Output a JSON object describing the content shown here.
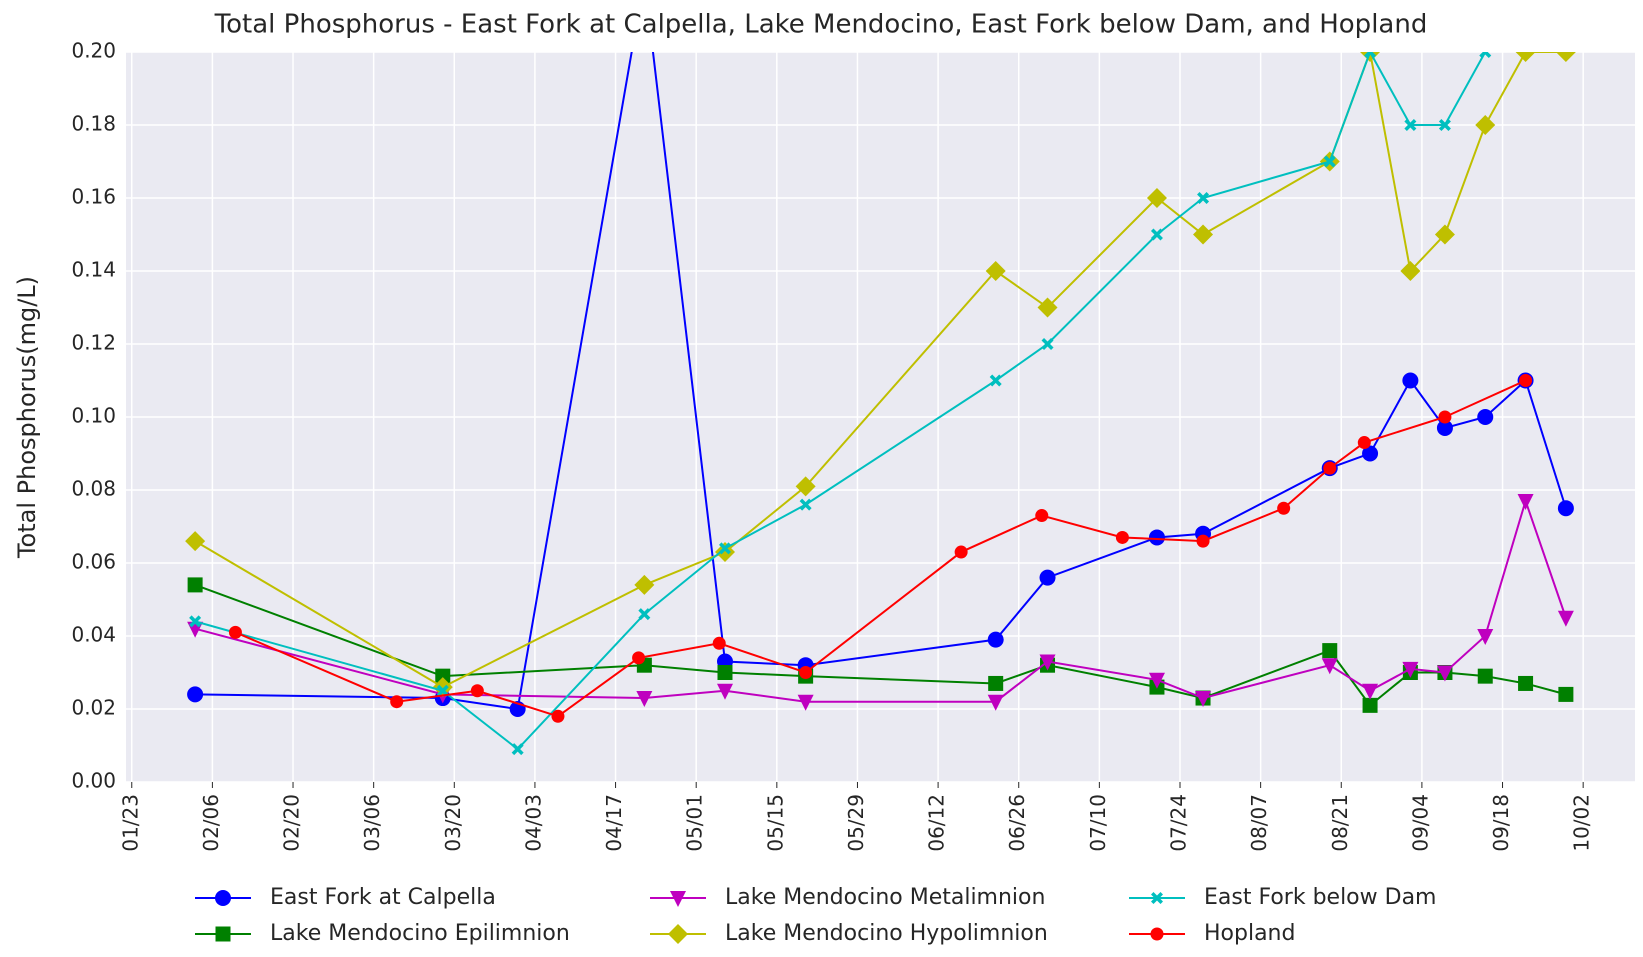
{
  "chart_data": {
    "type": "line",
    "title": "Total Phosphorus - East Fork at Calpella, Lake Mendocino, East Fork below Dam, and Hopland",
    "y_label": "Total Phosphorus(mg/L)",
    "xlim": [
      "01/22",
      "10/11"
    ],
    "xticks": [
      "01/23",
      "02/06",
      "02/20",
      "03/06",
      "03/20",
      "04/03",
      "04/17",
      "05/01",
      "05/15",
      "05/29",
      "06/12",
      "06/26",
      "07/10",
      "07/24",
      "08/07",
      "08/21",
      "09/04",
      "09/18",
      "10/02"
    ],
    "ylim": [
      0,
      0.2
    ],
    "yticks": [
      {
        "value": 0,
        "label": "0.00"
      },
      {
        "value": 0.02,
        "label": "0.02"
      },
      {
        "value": 0.04,
        "label": "0.04"
      },
      {
        "value": 0.06,
        "label": "0.06"
      },
      {
        "value": 0.08,
        "label": "0.08"
      },
      {
        "value": 0.1,
        "label": "0.10"
      },
      {
        "value": 0.12,
        "label": "0.12"
      },
      {
        "value": 0.14,
        "label": "0.14"
      },
      {
        "value": 0.16,
        "label": "0.16"
      },
      {
        "value": 0.18,
        "label": "0.18"
      },
      {
        "value": 0.2,
        "label": "0.20"
      }
    ],
    "grid": true,
    "legend": "bottom",
    "series": [
      {
        "name": "East Fork at Calpella",
        "color": "#0000ff",
        "marker": "circle",
        "x": [
          "02/03",
          "03/18",
          "03/31",
          "04/22",
          "05/06",
          "05/20",
          "06/22",
          "07/01",
          "07/20",
          "07/28",
          "08/19",
          "08/26",
          "09/02",
          "09/08",
          "09/15",
          "09/22",
          "09/29"
        ],
        "values": [
          0.024,
          0.023,
          0.02,
          0.22,
          0.033,
          0.032,
          0.039,
          0.056,
          0.067,
          0.068,
          0.086,
          0.09,
          0.11,
          0.097,
          0.1,
          0.11,
          0.075
        ]
      },
      {
        "name": "Lake Mendocino Epilimnion",
        "color": "#008000",
        "marker": "square",
        "x": [
          "02/03",
          "03/18",
          "04/22",
          "05/06",
          "05/20",
          "06/22",
          "07/01",
          "07/20",
          "07/28",
          "08/19",
          "08/26",
          "09/02",
          "09/08",
          "09/15",
          "09/22",
          "09/29"
        ],
        "values": [
          0.054,
          0.029,
          0.032,
          0.03,
          0.029,
          0.027,
          0.032,
          0.026,
          0.023,
          0.036,
          0.021,
          0.03,
          0.03,
          0.029,
          0.027,
          0.024
        ]
      },
      {
        "name": "Lake Mendocino Metalimnion",
        "color": "#bf00bf",
        "marker": "triangle-down",
        "x": [
          "02/03",
          "03/18",
          "04/22",
          "05/06",
          "05/20",
          "06/22",
          "07/01",
          "07/20",
          "07/28",
          "08/19",
          "08/26",
          "09/02",
          "09/08",
          "09/15",
          "09/22",
          "09/29"
        ],
        "values": [
          0.042,
          0.024,
          0.023,
          0.025,
          0.022,
          0.022,
          0.033,
          0.028,
          0.023,
          0.032,
          0.025,
          0.031,
          0.03,
          0.04,
          0.077,
          0.045
        ]
      },
      {
        "name": "Lake Mendocino Hypolimnion",
        "color": "#bfbf00",
        "marker": "diamond",
        "x": [
          "02/03",
          "03/18",
          "04/22",
          "05/06",
          "05/20",
          "06/22",
          "07/01",
          "07/20",
          "07/28",
          "08/19",
          "08/26",
          "09/02",
          "09/08",
          "09/15",
          "09/22",
          "09/29"
        ],
        "values": [
          0.066,
          0.026,
          0.054,
          0.063,
          0.081,
          0.14,
          0.13,
          0.16,
          0.15,
          0.17,
          0.2,
          0.14,
          0.15,
          0.18,
          0.2,
          0.2
        ]
      },
      {
        "name": "East Fork below Dam",
        "color": "#00bfbf",
        "marker": "x",
        "x": [
          "02/03",
          "03/18",
          "03/31",
          "04/22",
          "05/06",
          "05/20",
          "06/22",
          "07/01",
          "07/20",
          "07/28",
          "08/19",
          "08/26",
          "09/02",
          "09/08",
          "09/15"
        ],
        "values": [
          0.044,
          0.025,
          0.009,
          0.046,
          0.064,
          0.076,
          0.11,
          0.12,
          0.15,
          0.16,
          0.17,
          0.2,
          0.18,
          0.18,
          0.2
        ]
      },
      {
        "name": "Hopland",
        "color": "#ff0000",
        "marker": "octagon",
        "x": [
          "02/10",
          "03/10",
          "03/24",
          "04/07",
          "04/21",
          "05/05",
          "05/20",
          "06/16",
          "06/30",
          "07/14",
          "07/28",
          "08/11",
          "08/19",
          "08/25",
          "09/08",
          "09/22"
        ],
        "values": [
          0.041,
          0.022,
          0.025,
          0.018,
          0.034,
          0.038,
          0.03,
          0.063,
          0.073,
          0.067,
          0.066,
          0.075,
          0.086,
          0.093,
          0.1,
          0.11
        ]
      }
    ]
  }
}
